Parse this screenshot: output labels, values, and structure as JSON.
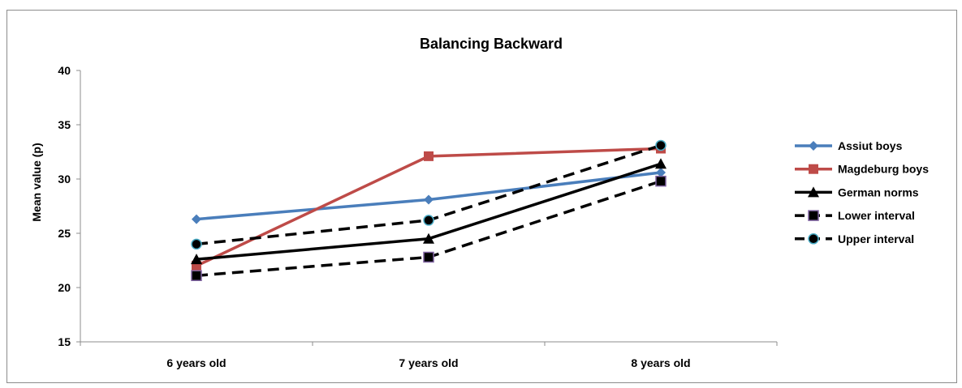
{
  "chart_data": {
    "type": "line",
    "title": "Balancing Backward",
    "xlabel": "",
    "ylabel": "Mean value (p)",
    "categories": [
      "6 years old",
      "7 years old",
      "8 years old"
    ],
    "ylim": [
      15,
      40
    ],
    "yticks": [
      15,
      20,
      25,
      30,
      35,
      40
    ],
    "grid": false,
    "legend_position": "right",
    "series": [
      {
        "name": "Assiut boys",
        "values": [
          26.3,
          28.1,
          30.6
        ],
        "color": "#4a7ebb",
        "marker": "diamond",
        "dashed": false
      },
      {
        "name": "Magdeburg boys",
        "values": [
          22.0,
          32.1,
          32.8
        ],
        "color": "#be4b48",
        "marker": "square",
        "dashed": false
      },
      {
        "name": "German norms",
        "values": [
          22.6,
          24.5,
          31.4
        ],
        "color": "#000000",
        "marker": "triangle",
        "dashed": false
      },
      {
        "name": "Lower interval",
        "values": [
          21.1,
          22.8,
          29.8
        ],
        "color": "#000000",
        "marker": "square-purple",
        "dashed": true
      },
      {
        "name": "Upper interval",
        "values": [
          24.0,
          26.2,
          33.1
        ],
        "color": "#000000",
        "marker": "circle-cyan",
        "dashed": true
      }
    ]
  }
}
